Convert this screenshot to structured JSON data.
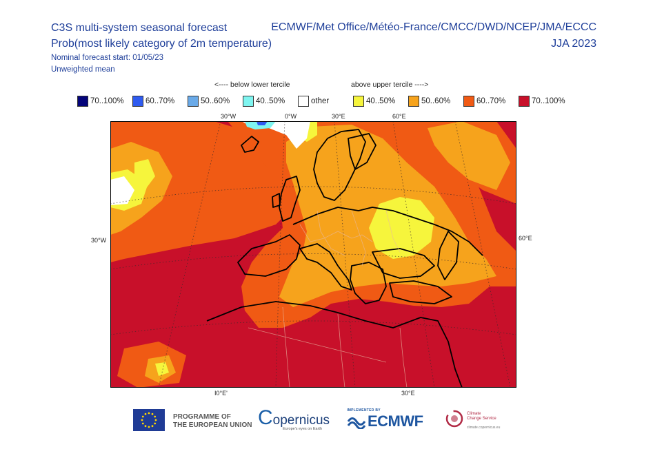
{
  "header": {
    "title_left": "C3S multi-system seasonal forecast",
    "subtitle_left": "Prob(most likely category of 2m temperature)",
    "forecast_start": "Nominal forecast start: 01/05/23",
    "mean_type": "Unweighted mean",
    "centres": "ECMWF/Met Office/Météo-France/CMCC/DWD/NCEP/JMA/ECCC",
    "season": "JJA 2023"
  },
  "legend": {
    "below_caption": "<---- below lower tercile",
    "above_caption": "above upper tercile ---->",
    "items": [
      {
        "label": "70..100%",
        "color": "#04047a"
      },
      {
        "label": "60..70%",
        "color": "#2f5bf0"
      },
      {
        "label": "50..60%",
        "color": "#6aaae8"
      },
      {
        "label": "40..50%",
        "color": "#7ff5f0"
      },
      {
        "label": "other",
        "color": "#ffffff"
      },
      {
        "label": "40..50%",
        "color": "#f6f53c"
      },
      {
        "label": "50..60%",
        "color": "#f6a31c"
      },
      {
        "label": "60..70%",
        "color": "#f05a14"
      },
      {
        "label": "70..100%",
        "color": "#c8102a"
      }
    ]
  },
  "axes": {
    "top": [
      "30°W",
      "0°W",
      "30°E",
      "60°E"
    ],
    "left": "30°W",
    "right": "60°E",
    "bottom": [
      "I0°E'",
      "30°E"
    ]
  },
  "footer": {
    "eu_line1": "PROGRAMME OF",
    "eu_line2": "THE EUROPEAN UNION",
    "copernicus": "opernicus",
    "copernicus_c": "C",
    "copernicus_tag": "Europe's eyes on Earth",
    "ecmwf_small": "IMPLEMENTED BY",
    "ecmwf": "ECMWF",
    "c3s_line1": "Climate",
    "c3s_line2": "Change Service",
    "c3s_line3": "climate.copernicus.eu"
  }
}
